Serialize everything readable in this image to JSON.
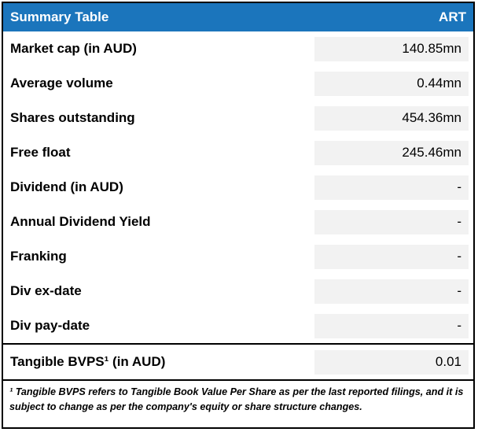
{
  "table": {
    "header": {
      "title": "Summary Table",
      "ticker": "ART"
    },
    "rows": [
      {
        "label": "Market cap (in AUD)",
        "value": "140.85mn"
      },
      {
        "label": "Average volume",
        "value": "0.44mn"
      },
      {
        "label": "Shares outstanding",
        "value": "454.36mn"
      },
      {
        "label": "Free float",
        "value": "245.46mn"
      },
      {
        "label": "Dividend (in AUD)",
        "value": "-"
      },
      {
        "label": "Annual Dividend Yield",
        "value": "-"
      },
      {
        "label": "Franking",
        "value": "-"
      },
      {
        "label": "Div ex-date",
        "value": "-"
      },
      {
        "label": "Div pay-date",
        "value": "-"
      },
      {
        "label": "Tangible BVPS¹ (in AUD)",
        "value": "0.01"
      }
    ],
    "footnote": "¹ Tangible BVPS refers to Tangible Book Value Per Share as per the last reported filings, and it is subject to change as per the company's equity or share structure changes."
  },
  "colors": {
    "header_bg": "#1B75BC",
    "value_cell_bg": "#F2F2F2",
    "border": "#000000"
  }
}
